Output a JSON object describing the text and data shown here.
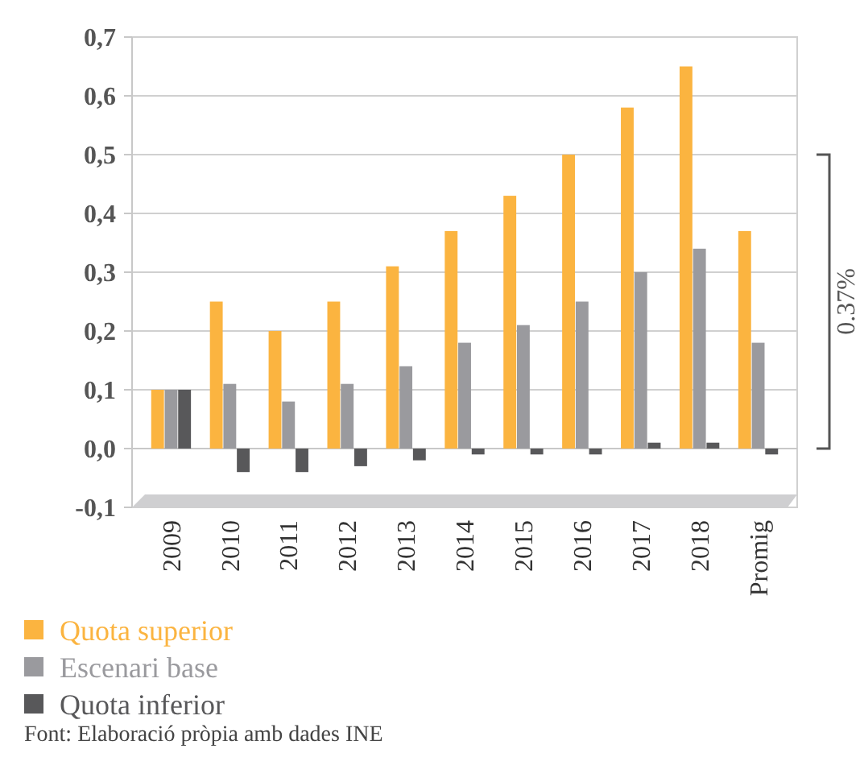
{
  "chart_data": {
    "type": "bar",
    "categories": [
      "2009",
      "2010",
      "2011",
      "2012",
      "2013",
      "2014",
      "2015",
      "2016",
      "2017",
      "2018",
      "Promig"
    ],
    "series": [
      {
        "name": "Quota superior",
        "color": "#fbb440",
        "values": [
          0.1,
          0.25,
          0.2,
          0.25,
          0.31,
          0.37,
          0.43,
          0.5,
          0.58,
          0.65,
          0.37
        ]
      },
      {
        "name": "Escenari base",
        "color": "#9a9a9e",
        "values": [
          0.1,
          0.11,
          0.08,
          0.11,
          0.14,
          0.18,
          0.21,
          0.25,
          0.3,
          0.34,
          0.18
        ]
      },
      {
        "name": "Quota inferior",
        "color": "#58585a",
        "values": [
          0.1,
          -0.04,
          -0.04,
          -0.03,
          -0.02,
          -0.01,
          -0.01,
          -0.01,
          0.01,
          0.01,
          -0.01
        ]
      }
    ],
    "ylim": [
      -0.1,
      0.7
    ],
    "yticks": [
      {
        "value": -0.1,
        "label": "-0,1"
      },
      {
        "value": 0,
        "label": "0,0"
      },
      {
        "value": 0.1,
        "label": "0,1"
      },
      {
        "value": 0.2,
        "label": "0,2"
      },
      {
        "value": 0.3,
        "label": "0,3"
      },
      {
        "value": 0.4,
        "label": "0,4"
      },
      {
        "value": 0.5,
        "label": "0,5"
      },
      {
        "value": 0.6,
        "label": "0,6"
      },
      {
        "value": 0.7,
        "label": "0,7"
      }
    ],
    "grid": "y",
    "legend": "bottom",
    "annotations": [
      "0.37%",
      "Font: Elaboració pròpia amb dades INE"
    ]
  }
}
